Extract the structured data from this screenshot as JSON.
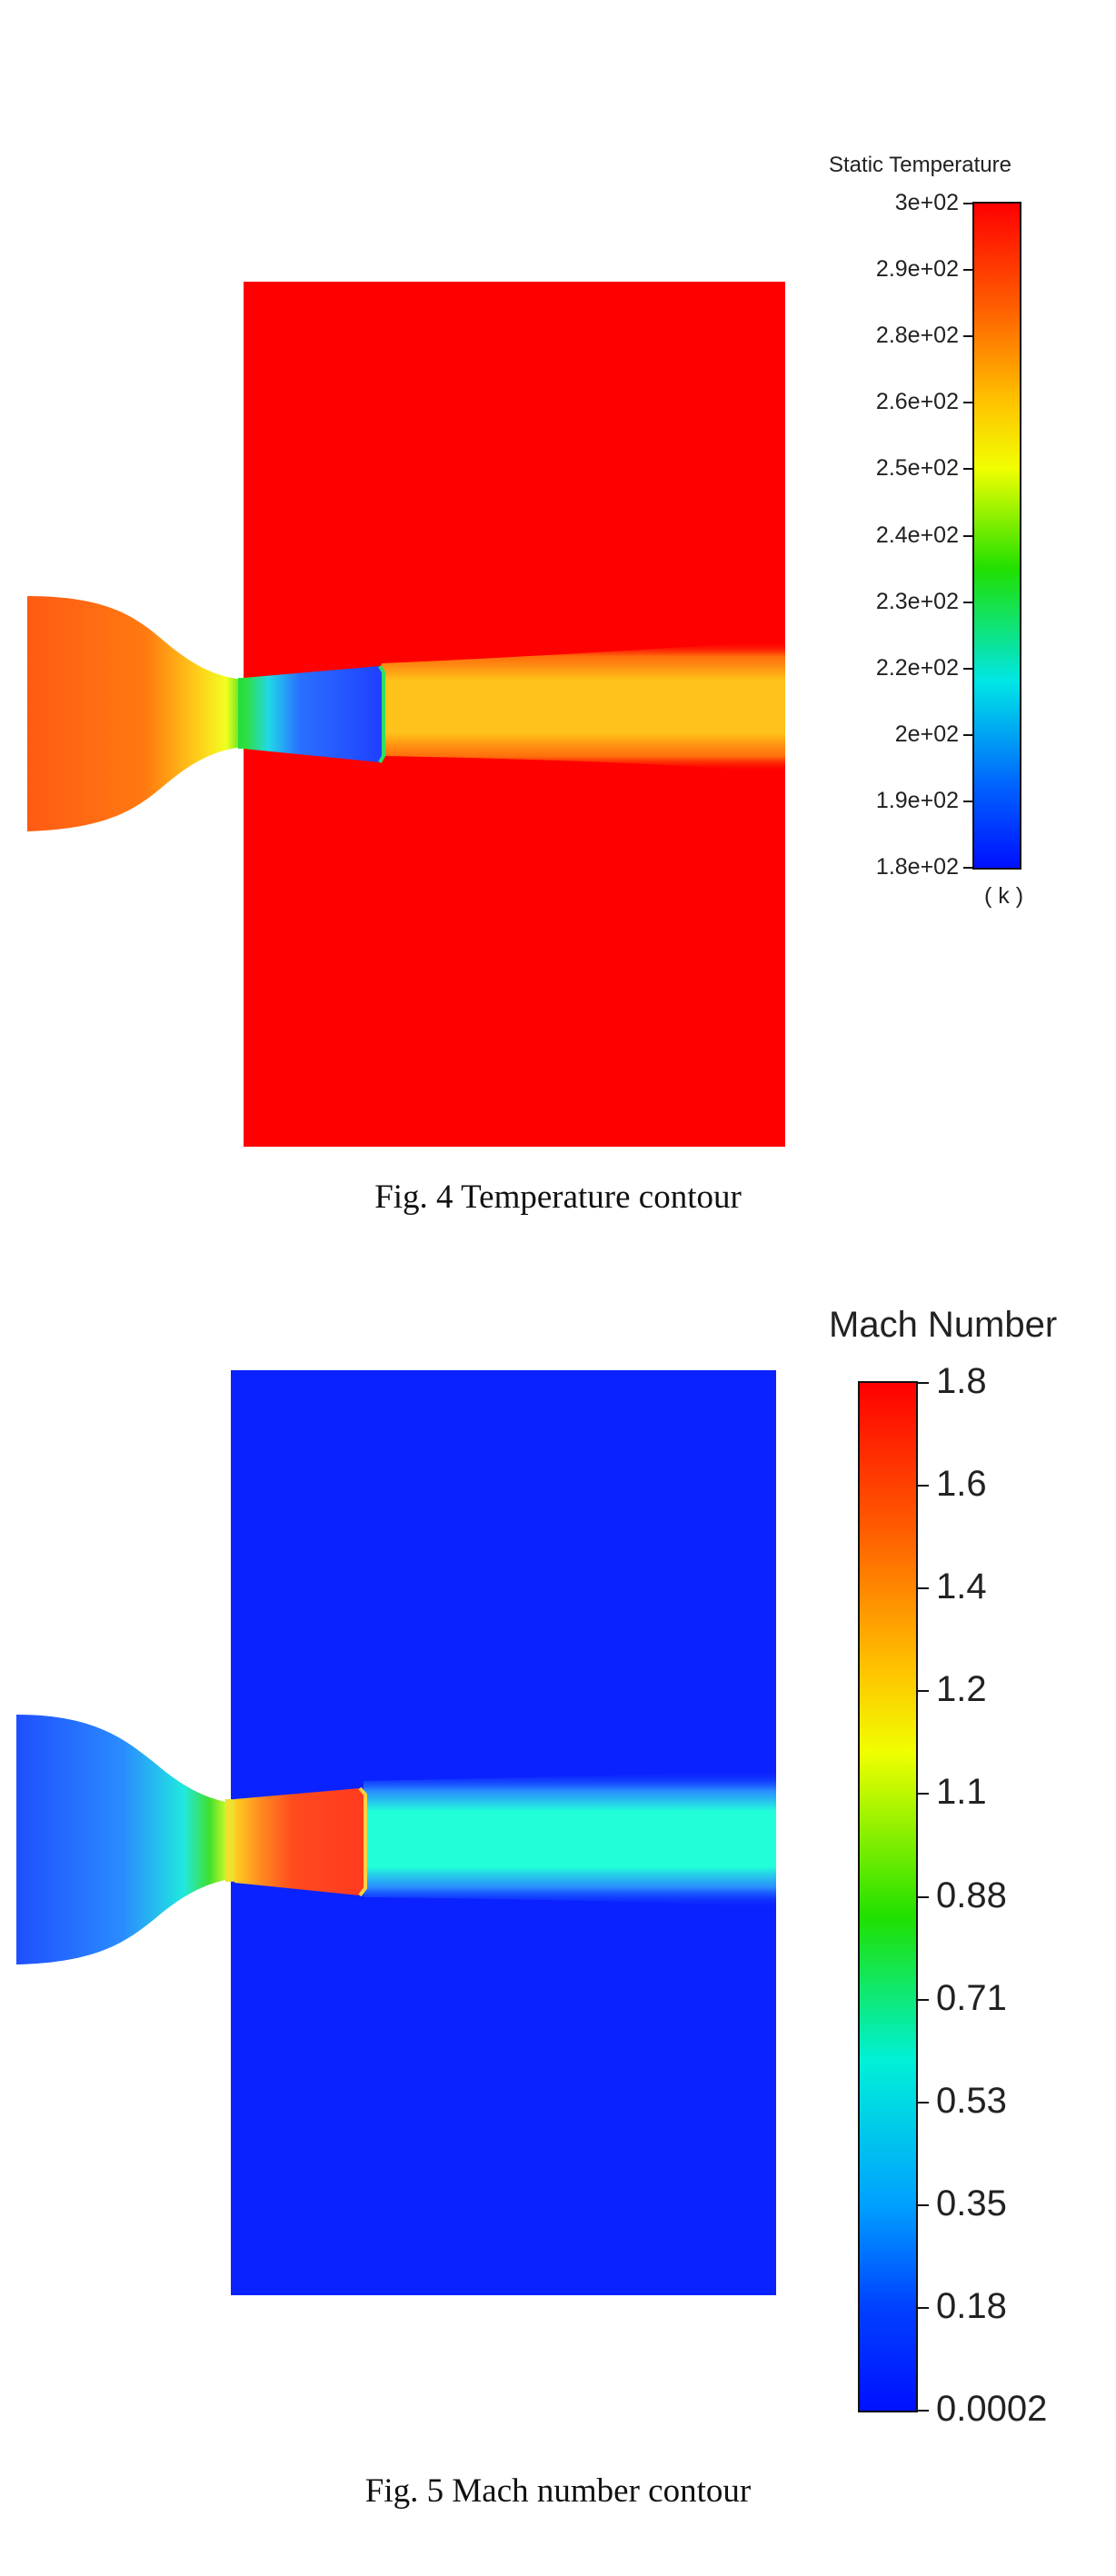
{
  "figures": [
    {
      "id": "fig4",
      "caption": "Fig. 4 Temperature contour",
      "legend": {
        "title": "Static Temperature",
        "unit": "( k )",
        "ticks": [
          "3e+02",
          "2.9e+02",
          "2.8e+02",
          "2.6e+02",
          "2.5e+02",
          "2.4e+02",
          "2.3e+02",
          "2.2e+02",
          "2e+02",
          "1.9e+02",
          "1.8e+02"
        ]
      },
      "colors": {
        "ambient": "#ff0000",
        "inlet": "#ff5a14",
        "throat": "#22dd22",
        "nozzle_exit": "#1f4fff",
        "jet": "#ffc21a"
      }
    },
    {
      "id": "fig5",
      "caption": "Fig. 5 Mach number contour",
      "legend": {
        "title": "Mach Number",
        "ticks": [
          "1.8",
          "1.6",
          "1.4",
          "1.2",
          "1.1",
          "0.88",
          "0.71",
          "0.53",
          "0.35",
          "0.18",
          "0.0002"
        ]
      },
      "colors": {
        "ambient": "#0a22ff",
        "inlet": "#2266ff",
        "throat": "#22dd22",
        "nozzle_exit": "#ff3c1e",
        "jet": "#22ffd8"
      }
    }
  ]
}
